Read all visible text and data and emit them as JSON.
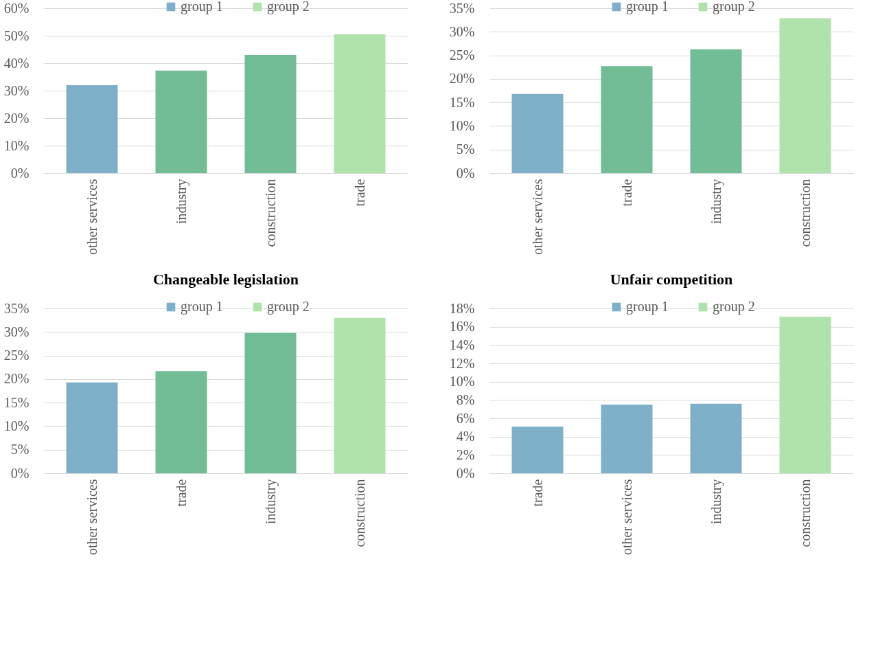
{
  "chart_data": [
    {
      "type": "bar",
      "stacked": true,
      "legend": "top",
      "grid": "y",
      "categories": [
        "other services",
        "industry",
        "construction",
        "trade"
      ],
      "series": [
        {
          "name": "group 1",
          "color": "#7fb0c9",
          "values": [
            32,
            null,
            null,
            null
          ]
        },
        {
          "color": "#72bc96",
          "values": [
            null,
            37.3,
            43,
            null
          ]
        },
        {
          "name": "group 2",
          "color": "#b0e3ac",
          "values": [
            null,
            null,
            null,
            50.5
          ]
        }
      ],
      "ylim": [
        0,
        60
      ],
      "yticks": [
        {
          "value": 0,
          "label": "0%"
        },
        {
          "value": 10,
          "label": "10%"
        },
        {
          "value": 20,
          "label": "20%"
        },
        {
          "value": 30,
          "label": "30%"
        },
        {
          "value": 40,
          "label": "40%"
        },
        {
          "value": 50,
          "label": "50%"
        },
        {
          "value": 60,
          "label": "60%"
        }
      ]
    },
    {
      "type": "bar",
      "stacked": true,
      "legend": "top",
      "grid": "y",
      "categories": [
        "other services",
        "trade",
        "industry",
        "construction"
      ],
      "series": [
        {
          "name": "group 1",
          "color": "#7fb0c9",
          "values": [
            16.8,
            null,
            null,
            null
          ]
        },
        {
          "color": "#72bc96",
          "values": [
            null,
            22.7,
            26.3,
            null
          ]
        },
        {
          "name": "group 2",
          "color": "#b0e3ac",
          "values": [
            null,
            null,
            null,
            32.9
          ]
        }
      ],
      "ylim": [
        0,
        35
      ],
      "yticks": [
        {
          "value": 0,
          "label": "0%"
        },
        {
          "value": 5,
          "label": "5%"
        },
        {
          "value": 10,
          "label": "10%"
        },
        {
          "value": 15,
          "label": "15%"
        },
        {
          "value": 20,
          "label": "20%"
        },
        {
          "value": 25,
          "label": "25%"
        },
        {
          "value": 30,
          "label": "30%"
        },
        {
          "value": 35,
          "label": "35%"
        }
      ]
    },
    {
      "type": "bar",
      "stacked": true,
      "legend": "top",
      "grid": "y",
      "title": "Changeable legislation",
      "categories": [
        "other services",
        "trade",
        "industry",
        "construction"
      ],
      "series": [
        {
          "name": "group 1",
          "color": "#7fb0c9",
          "values": [
            19.3,
            null,
            null,
            null
          ]
        },
        {
          "color": "#72bc96",
          "values": [
            null,
            21.7,
            29.8,
            null
          ]
        },
        {
          "name": "group 2",
          "color": "#b0e3ac",
          "values": [
            null,
            null,
            null,
            33
          ]
        }
      ],
      "ylim": [
        0,
        35
      ],
      "yticks": [
        {
          "value": 0,
          "label": "0%"
        },
        {
          "value": 5,
          "label": "5%"
        },
        {
          "value": 10,
          "label": "10%"
        },
        {
          "value": 15,
          "label": "15%"
        },
        {
          "value": 20,
          "label": "20%"
        },
        {
          "value": 25,
          "label": "25%"
        },
        {
          "value": 30,
          "label": "30%"
        },
        {
          "value": 35,
          "label": "35%"
        }
      ]
    },
    {
      "type": "bar",
      "stacked": true,
      "legend": "top",
      "grid": "y",
      "title": "Unfair competition",
      "categories": [
        "trade",
        "other services",
        "industry",
        "construction"
      ],
      "series": [
        {
          "name": "group 1",
          "color": "#7fb0c9",
          "values": [
            5.1,
            7.5,
            7.6,
            null
          ]
        },
        {
          "name": "group 2",
          "color": "#b0e3ac",
          "values": [
            null,
            null,
            null,
            17.1
          ]
        }
      ],
      "ylim": [
        0,
        18
      ],
      "yticks": [
        {
          "value": 0,
          "label": "0%"
        },
        {
          "value": 2,
          "label": "2%"
        },
        {
          "value": 4,
          "label": "4%"
        },
        {
          "value": 6,
          "label": "6%"
        },
        {
          "value": 8,
          "label": "8%"
        },
        {
          "value": 10,
          "label": "10%"
        },
        {
          "value": 12,
          "label": "12%"
        },
        {
          "value": 14,
          "label": "14%"
        },
        {
          "value": 16,
          "label": "16%"
        },
        {
          "value": 18,
          "label": "18%"
        }
      ]
    }
  ]
}
